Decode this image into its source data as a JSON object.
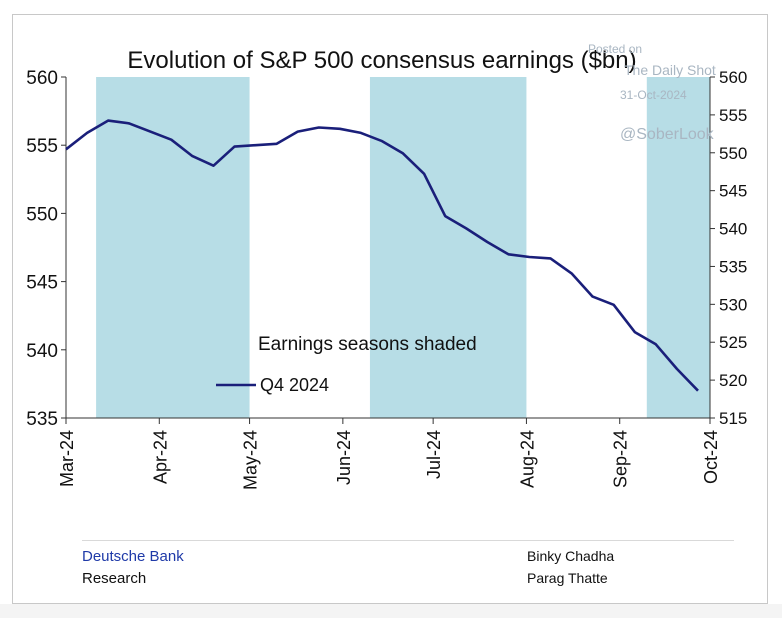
{
  "chart_data": {
    "type": "line",
    "title": "Evolution of S&P 500 consensus earnings ($bn)",
    "annotation": "Earnings seasons shaded",
    "series": [
      {
        "name": "Q4 2024",
        "color": "#1a1f7a",
        "points": [
          [
            "2024-03-01",
            554.7
          ],
          [
            "2024-03-08",
            555.9
          ],
          [
            "2024-03-15",
            556.8
          ],
          [
            "2024-03-22",
            556.6
          ],
          [
            "2024-03-29",
            556.0
          ],
          [
            "2024-04-05",
            555.4
          ],
          [
            "2024-04-12",
            554.2
          ],
          [
            "2024-04-19",
            553.5
          ],
          [
            "2024-04-26",
            554.9
          ],
          [
            "2024-05-03",
            555.0
          ],
          [
            "2024-05-10",
            555.1
          ],
          [
            "2024-05-17",
            556.0
          ],
          [
            "2024-05-24",
            556.3
          ],
          [
            "2024-05-31",
            556.2
          ],
          [
            "2024-06-07",
            555.9
          ],
          [
            "2024-06-14",
            555.3
          ],
          [
            "2024-06-21",
            554.4
          ],
          [
            "2024-06-28",
            552.9
          ],
          [
            "2024-07-05",
            549.8
          ],
          [
            "2024-07-12",
            548.9
          ],
          [
            "2024-07-19",
            547.9
          ],
          [
            "2024-07-26",
            547.0
          ],
          [
            "2024-08-02",
            546.8
          ],
          [
            "2024-08-09",
            546.7
          ],
          [
            "2024-08-16",
            545.6
          ],
          [
            "2024-08-23",
            543.9
          ],
          [
            "2024-08-30",
            543.3
          ],
          [
            "2024-09-06",
            541.3
          ],
          [
            "2024-09-13",
            540.4
          ],
          [
            "2024-09-20",
            538.6
          ],
          [
            "2024-09-27",
            537.0
          ]
        ]
      }
    ],
    "shaded_periods": [
      [
        "2024-03-11",
        "2024-05-01"
      ],
      [
        "2024-06-10",
        "2024-08-01"
      ],
      [
        "2024-09-10",
        "2024-10-01"
      ]
    ],
    "shading_color": "#b7dde6",
    "x_ticks": [
      "Mar-24",
      "Apr-24",
      "May-24",
      "Jun-24",
      "Jul-24",
      "Aug-24",
      "Sep-24",
      "Oct-24"
    ],
    "x_tick_dates": [
      "2024-03-01",
      "2024-04-01",
      "2024-05-01",
      "2024-06-01",
      "2024-07-01",
      "2024-08-01",
      "2024-09-01",
      "2024-10-01"
    ],
    "xlim": [
      "2024-03-01",
      "2024-10-01"
    ],
    "ylim_left": [
      535,
      560
    ],
    "yticks_left": [
      "535",
      "540",
      "545",
      "550",
      "555",
      "560"
    ],
    "ylim_right": [
      515,
      560
    ],
    "yticks_right": [
      "515",
      "520",
      "525",
      "530",
      "535",
      "540",
      "545",
      "550",
      "555",
      "560"
    ],
    "legend_placement": "lower-middle",
    "grid": false
  },
  "watermark": {
    "printed_on": "Posted on",
    "site": "The Daily Shot",
    "date": "31-Oct-2024",
    "handle": "@SoberLook"
  },
  "footer": {
    "bank": "Deutsche Bank",
    "division": "Research",
    "author1": "Binky Chadha",
    "author2": "Parag Thatte"
  }
}
